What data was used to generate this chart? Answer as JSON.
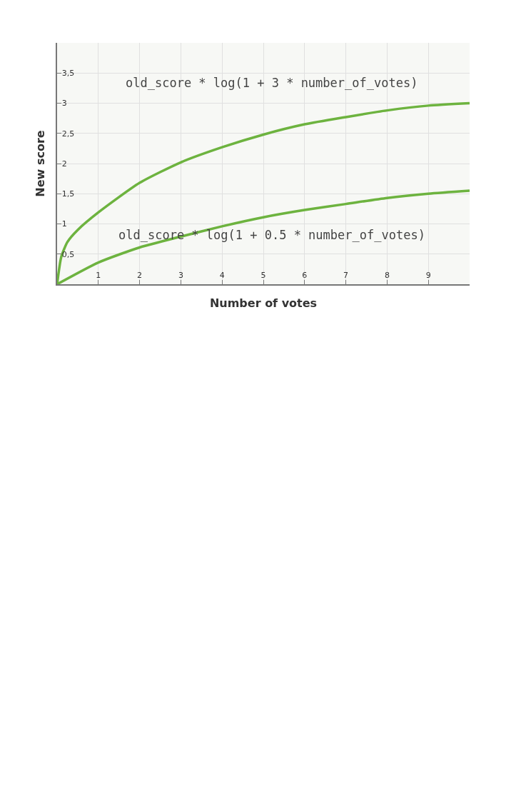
{
  "chart_data": {
    "type": "line",
    "xlabel": "Number of votes",
    "ylabel": "New score",
    "xlim": [
      0,
      10
    ],
    "xticks": [
      1,
      2,
      3,
      4,
      5,
      6,
      7,
      8,
      9
    ],
    "ylim": [
      0,
      4
    ],
    "yticks": [
      {
        "value": 0.5,
        "label": "0,5"
      },
      1,
      {
        "value": 1.5,
        "label": "1,5"
      },
      2,
      {
        "value": 2.5,
        "label": "2,5"
      },
      3,
      {
        "value": 3.5,
        "label": "3,5"
      }
    ],
    "grid": true,
    "marker": "none",
    "line_style": "solid",
    "series": [
      {
        "name": "old_score * log(1 + 3 * number_of_votes)",
        "color": "#6db33f",
        "x": [
          0,
          0.1,
          0.25,
          0.5,
          1,
          2,
          3,
          4,
          5,
          6,
          7,
          8,
          9,
          10
        ],
        "values": [
          0,
          0.45,
          0.7,
          0.9,
          1.19,
          1.68,
          2.02,
          2.27,
          2.48,
          2.65,
          2.77,
          2.88,
          2.96,
          3.0
        ]
      },
      {
        "name": "old_score * log(1 + 0.5 * number_of_votes)",
        "color": "#6db33f",
        "x": [
          0,
          1,
          2,
          3,
          4,
          5,
          6,
          7,
          8,
          9,
          10
        ],
        "values": [
          0,
          0.36,
          0.61,
          0.79,
          0.96,
          1.11,
          1.23,
          1.33,
          1.43,
          1.5,
          1.55
        ]
      }
    ]
  }
}
